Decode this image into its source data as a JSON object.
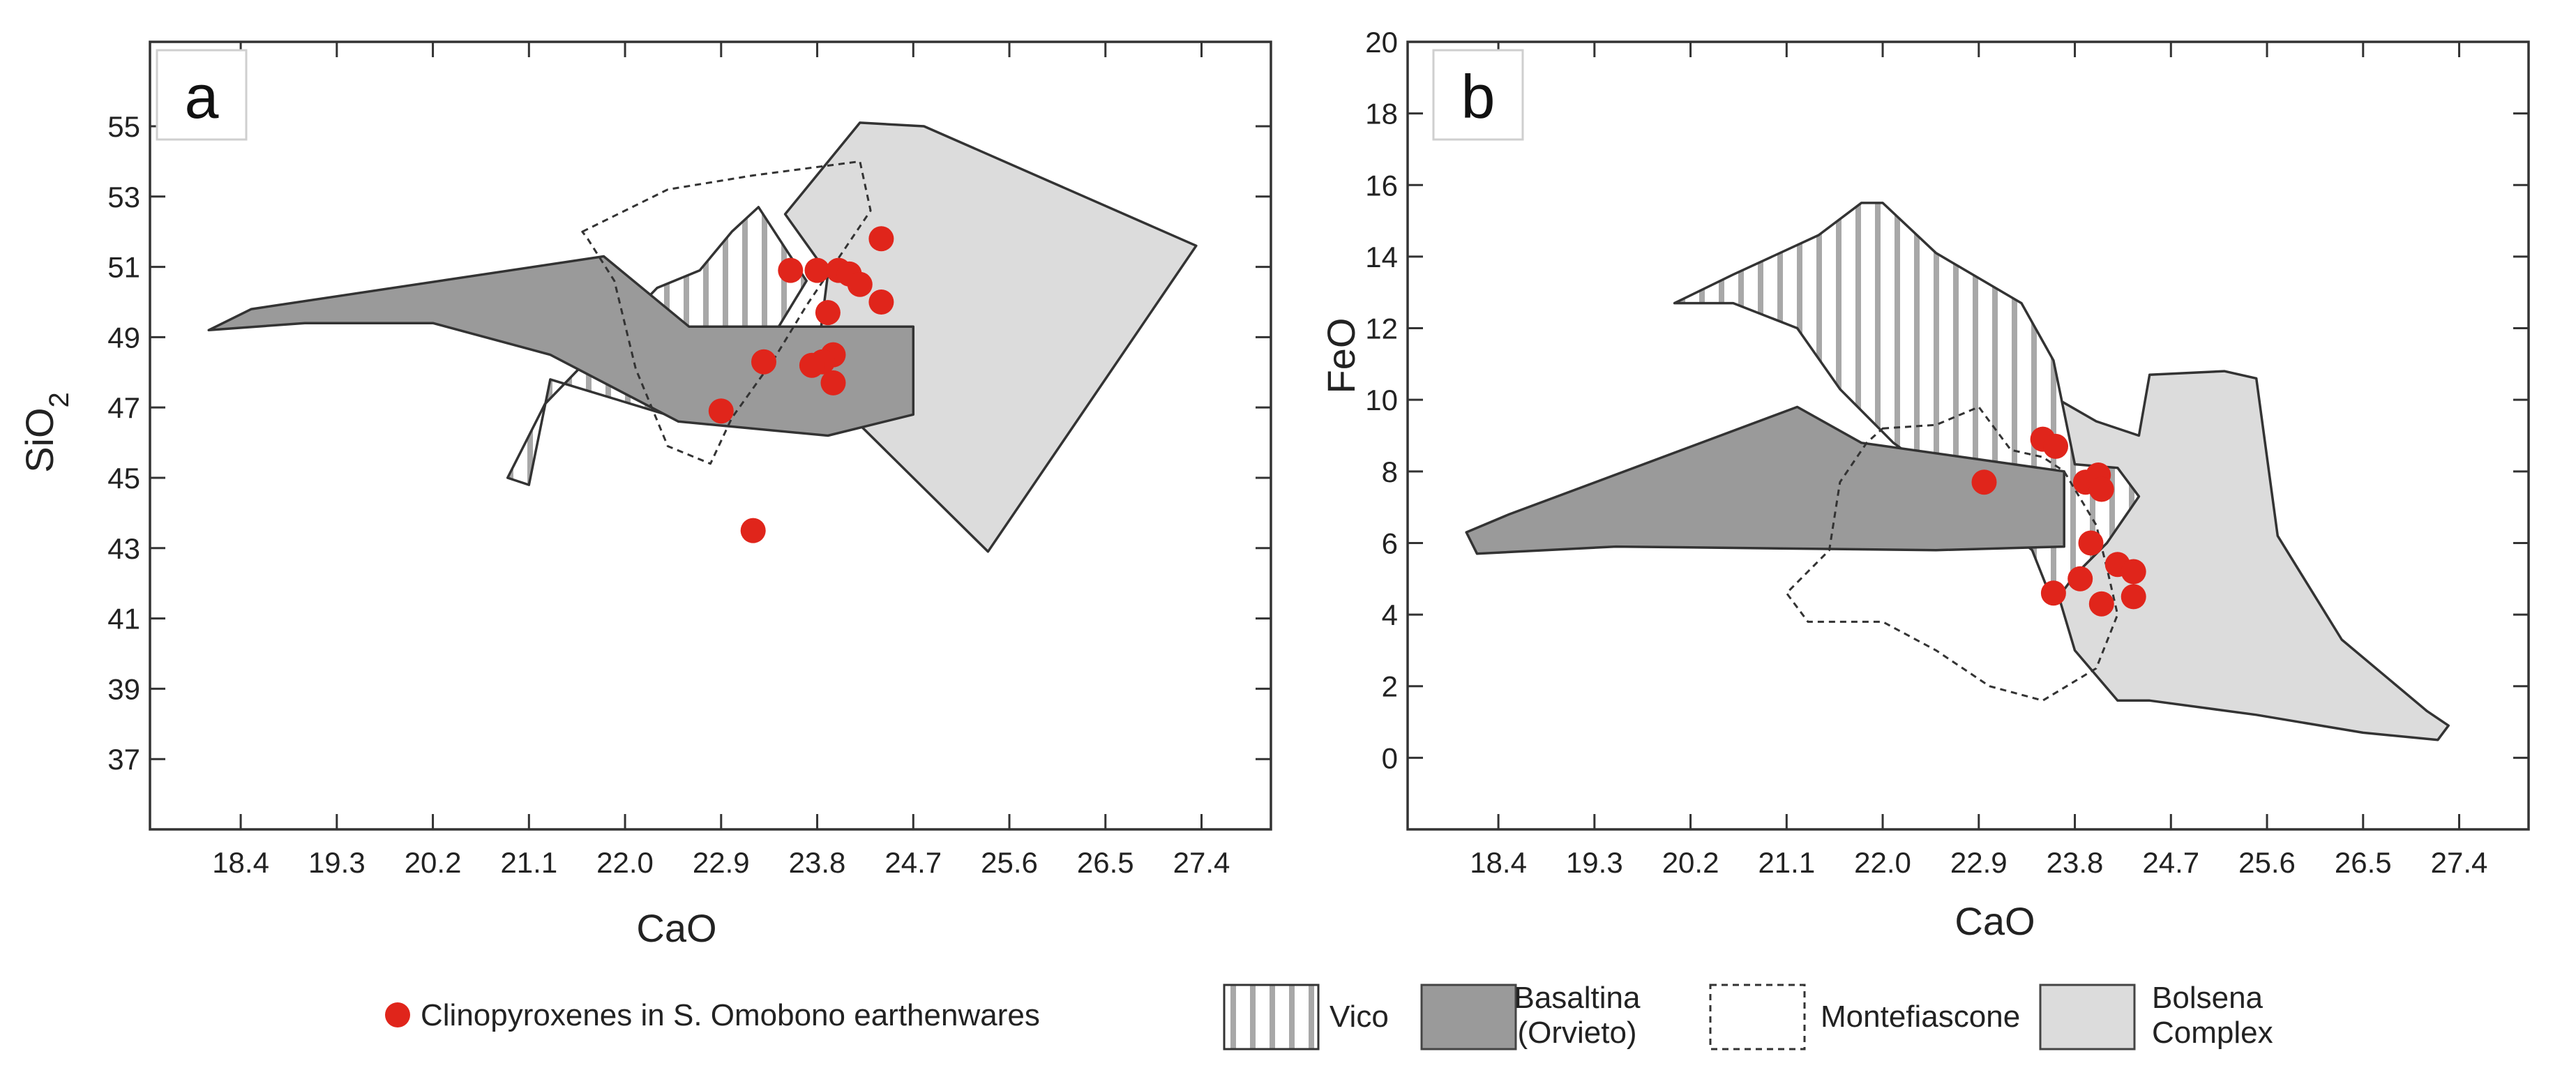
{
  "legend": {
    "points_label": "Clinopyroxenes in S. Omobono earthenwares",
    "vico_label": "Vico",
    "basaltina_label_line1": "Basaltina",
    "basaltina_label_line2": "(Orvieto)",
    "montefiascone_label": "Montefiascone",
    "bolsena_label_line1": "Bolsena",
    "bolsena_label_line2": "Complex"
  },
  "colors": {
    "points": "#e0251b",
    "basaltina": "#9a9a9a",
    "bolsena": "#dcdcdc",
    "vico_stripe": "#a8a8a8",
    "outline": "#333333"
  },
  "chart_data": [
    {
      "type": "scatter",
      "panel": "a",
      "xlabel": "CaO",
      "ylabel": "SiO2",
      "xlim": [
        17.55,
        28.05
      ],
      "ylim": [
        35.0,
        57.4
      ],
      "x_ticks": [
        "18.4",
        "19.3",
        "20.2",
        "21.1",
        "22.0",
        "22.9",
        "23.8",
        "24.7",
        "25.6",
        "26.5",
        "27.4"
      ],
      "y_ticks": [
        "37",
        "39",
        "41",
        "43",
        "45",
        "47",
        "49",
        "51",
        "53",
        "55"
      ],
      "grid": false,
      "fields": [
        {
          "name": "Bolsena Complex",
          "style": "solid-light",
          "points": [
            [
              24.2,
              55.1
            ],
            [
              24.8,
              55.0
            ],
            [
              27.35,
              51.6
            ],
            [
              25.4,
              42.9
            ],
            [
              24.2,
              46.5
            ],
            [
              23.8,
              48.4
            ],
            [
              23.9,
              50.8
            ],
            [
              23.5,
              52.5
            ]
          ]
        },
        {
          "name": "Vico",
          "style": "hatched",
          "points": [
            [
              23.25,
              52.7
            ],
            [
              23.7,
              50.6
            ],
            [
              23.4,
              49.1
            ],
            [
              22.6,
              46.6
            ],
            [
              21.3,
              47.8
            ],
            [
              21.1,
              44.8
            ],
            [
              20.9,
              45.0
            ],
            [
              21.25,
              47.1
            ],
            [
              22.3,
              50.4
            ],
            [
              22.7,
              50.9
            ],
            [
              23.0,
              52.0
            ]
          ]
        },
        {
          "name": "Basaltina (Orvieto)",
          "style": "solid-dark",
          "points": [
            [
              18.1,
              49.2
            ],
            [
              18.5,
              49.8
            ],
            [
              21.8,
              51.3
            ],
            [
              22.6,
              49.3
            ],
            [
              24.7,
              49.3
            ],
            [
              24.7,
              46.8
            ],
            [
              23.9,
              46.2
            ],
            [
              22.5,
              46.6
            ],
            [
              21.3,
              48.5
            ],
            [
              20.2,
              49.4
            ],
            [
              19.0,
              49.4
            ]
          ]
        },
        {
          "name": "Montefiascone",
          "style": "dashed",
          "points": [
            [
              21.6,
              52.0
            ],
            [
              22.4,
              53.2
            ],
            [
              23.2,
              53.6
            ],
            [
              24.2,
              54.0
            ],
            [
              24.3,
              52.6
            ],
            [
              23.7,
              49.9
            ],
            [
              23.4,
              48.4
            ],
            [
              23.0,
              46.7
            ],
            [
              22.8,
              45.4
            ],
            [
              22.4,
              45.9
            ],
            [
              22.1,
              48.1
            ],
            [
              21.9,
              50.6
            ],
            [
              21.65,
              51.8
            ]
          ]
        }
      ],
      "points_name": "Clinopyroxenes in S. Omobono earthenwares",
      "points": [
        [
          24.4,
          51.8
        ],
        [
          23.55,
          50.9
        ],
        [
          23.8,
          50.9
        ],
        [
          24.0,
          50.9
        ],
        [
          24.1,
          50.8
        ],
        [
          24.2,
          50.5
        ],
        [
          24.4,
          50.0
        ],
        [
          23.9,
          49.7
        ],
        [
          23.95,
          48.5
        ],
        [
          23.85,
          48.3
        ],
        [
          23.75,
          48.2
        ],
        [
          23.3,
          48.3
        ],
        [
          23.95,
          47.7
        ],
        [
          22.9,
          46.9
        ],
        [
          23.2,
          43.5
        ]
      ]
    },
    {
      "type": "scatter",
      "panel": "b",
      "xlabel": "CaO",
      "ylabel": "FeO",
      "xlim": [
        17.55,
        28.05
      ],
      "ylim": [
        -2.0,
        20.0
      ],
      "x_ticks": [
        "18.4",
        "19.3",
        "20.2",
        "21.1",
        "22.0",
        "22.9",
        "23.8",
        "24.7",
        "25.6",
        "26.5",
        "27.4"
      ],
      "y_ticks": [
        "0",
        "2",
        "4",
        "6",
        "8",
        "10",
        "12",
        "14",
        "16",
        "18",
        "20"
      ],
      "grid": false,
      "fields": [
        {
          "name": "Bolsena Complex",
          "style": "solid-light",
          "points": [
            [
              23.65,
              10.0
            ],
            [
              24.0,
              9.4
            ],
            [
              24.4,
              9.0
            ],
            [
              24.5,
              10.7
            ],
            [
              25.2,
              10.8
            ],
            [
              25.5,
              10.6
            ],
            [
              25.7,
              6.2
            ],
            [
              26.3,
              3.3
            ],
            [
              27.1,
              1.3
            ],
            [
              27.3,
              0.9
            ],
            [
              27.2,
              0.5
            ],
            [
              26.5,
              0.7
            ],
            [
              25.5,
              1.2
            ],
            [
              24.5,
              1.6
            ],
            [
              24.2,
              1.6
            ],
            [
              23.8,
              3.0
            ],
            [
              23.5,
              6.0
            ],
            [
              23.4,
              8.0
            ],
            [
              23.5,
              9.7
            ]
          ]
        },
        {
          "name": "Vico",
          "style": "hatched",
          "points": [
            [
              20.05,
              12.7
            ],
            [
              20.6,
              13.5
            ],
            [
              21.4,
              14.6
            ],
            [
              21.8,
              15.5
            ],
            [
              22.0,
              15.5
            ],
            [
              22.5,
              14.1
            ],
            [
              23.3,
              12.7
            ],
            [
              23.6,
              11.1
            ],
            [
              23.8,
              8.2
            ],
            [
              24.2,
              8.1
            ],
            [
              24.4,
              7.3
            ],
            [
              24.1,
              6.0
            ],
            [
              23.8,
              5.1
            ],
            [
              23.6,
              4.3
            ],
            [
              23.4,
              5.8
            ],
            [
              22.7,
              7.5
            ],
            [
              22.1,
              8.8
            ],
            [
              21.6,
              10.3
            ],
            [
              21.2,
              12.0
            ],
            [
              20.6,
              12.7
            ]
          ]
        },
        {
          "name": "Basaltina (Orvieto)",
          "style": "solid-dark",
          "points": [
            [
              18.1,
              6.3
            ],
            [
              18.5,
              6.8
            ],
            [
              21.2,
              9.8
            ],
            [
              21.8,
              8.8
            ],
            [
              23.7,
              8.0
            ],
            [
              23.7,
              5.9
            ],
            [
              22.5,
              5.8
            ],
            [
              19.5,
              5.9
            ],
            [
              18.2,
              5.7
            ]
          ]
        },
        {
          "name": "Montefiascone",
          "style": "dashed",
          "points": [
            [
              22.0,
              9.2
            ],
            [
              22.5,
              9.3
            ],
            [
              22.9,
              9.8
            ],
            [
              23.2,
              8.6
            ],
            [
              23.5,
              8.4
            ],
            [
              23.7,
              8.0
            ],
            [
              24.0,
              6.5
            ],
            [
              24.1,
              5.3
            ],
            [
              24.2,
              4.0
            ],
            [
              24.0,
              2.5
            ],
            [
              23.5,
              1.6
            ],
            [
              23.0,
              2.0
            ],
            [
              22.5,
              3.0
            ],
            [
              22.0,
              3.8
            ],
            [
              21.3,
              3.8
            ],
            [
              21.1,
              4.6
            ],
            [
              21.5,
              5.8
            ],
            [
              21.6,
              7.7
            ],
            [
              21.85,
              8.8
            ]
          ]
        }
      ],
      "points_name": "Clinopyroxenes in S. Omobono earthenwares",
      "points": [
        [
          23.5,
          8.9
        ],
        [
          23.62,
          8.7
        ],
        [
          22.95,
          7.7
        ],
        [
          23.9,
          7.7
        ],
        [
          24.02,
          7.9
        ],
        [
          24.05,
          7.5
        ],
        [
          23.95,
          6.0
        ],
        [
          24.2,
          5.4
        ],
        [
          24.35,
          5.2
        ],
        [
          23.85,
          5.0
        ],
        [
          23.6,
          4.6
        ],
        [
          24.05,
          4.3
        ],
        [
          24.35,
          4.5
        ]
      ]
    }
  ]
}
